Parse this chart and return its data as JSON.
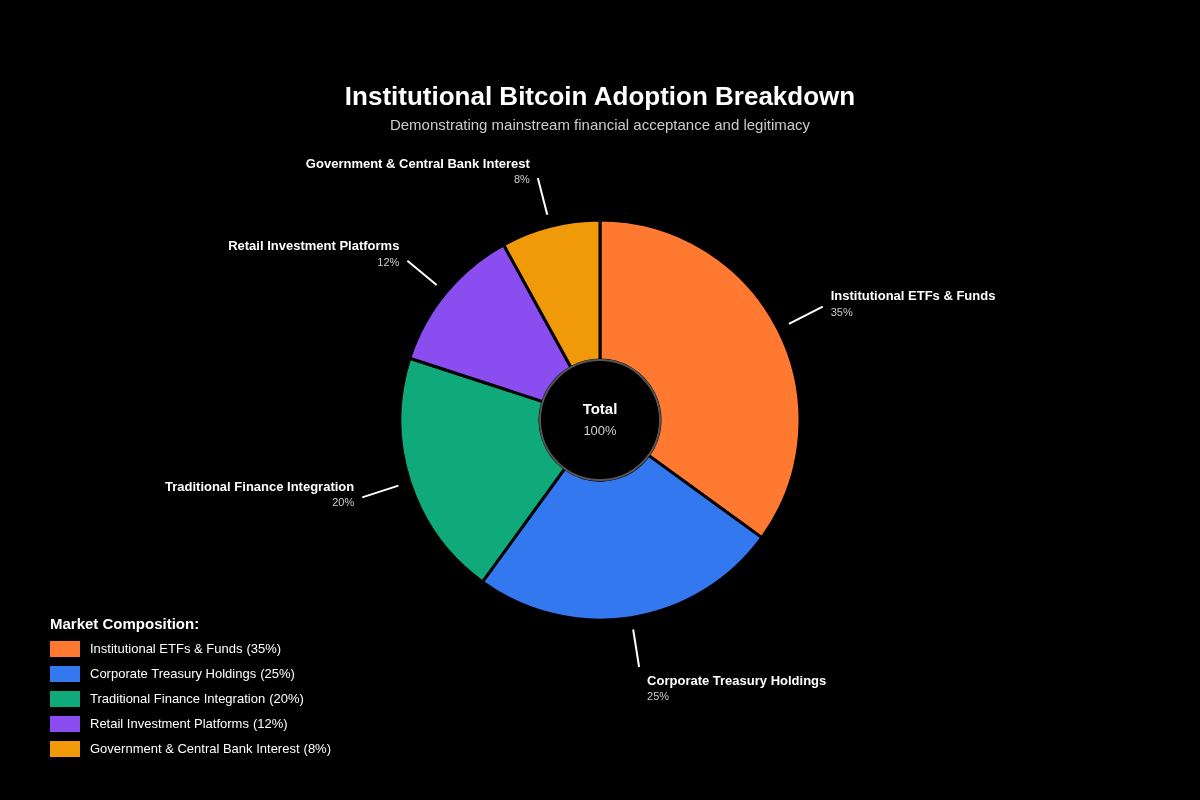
{
  "chart_data": {
    "type": "donut",
    "title": "Institutional Bitcoin Adoption Breakdown",
    "subtitle": "Demonstrating mainstream financial acceptance and legitimacy",
    "categories": [
      "Institutional ETFs & Funds",
      "Corporate Treasury Holdings",
      "Traditional Finance Integration",
      "Retail Investment Platforms",
      "Government & Central Bank Interest"
    ],
    "values": [
      35,
      25,
      20,
      12,
      8
    ],
    "value_labels": [
      "35%",
      "25%",
      "20%",
      "12%",
      "8%"
    ],
    "colors": [
      "#ff7a30",
      "#3478f0",
      "#10a979",
      "#8a4ef0",
      "#f09a0a"
    ],
    "legend": "bottom left",
    "legend_title": "Market Composition:",
    "annotations": [
      "Total",
      "100%",
      "(35%)",
      "(25%)",
      "(20%)",
      "(12%)",
      "(8%)"
    ]
  }
}
